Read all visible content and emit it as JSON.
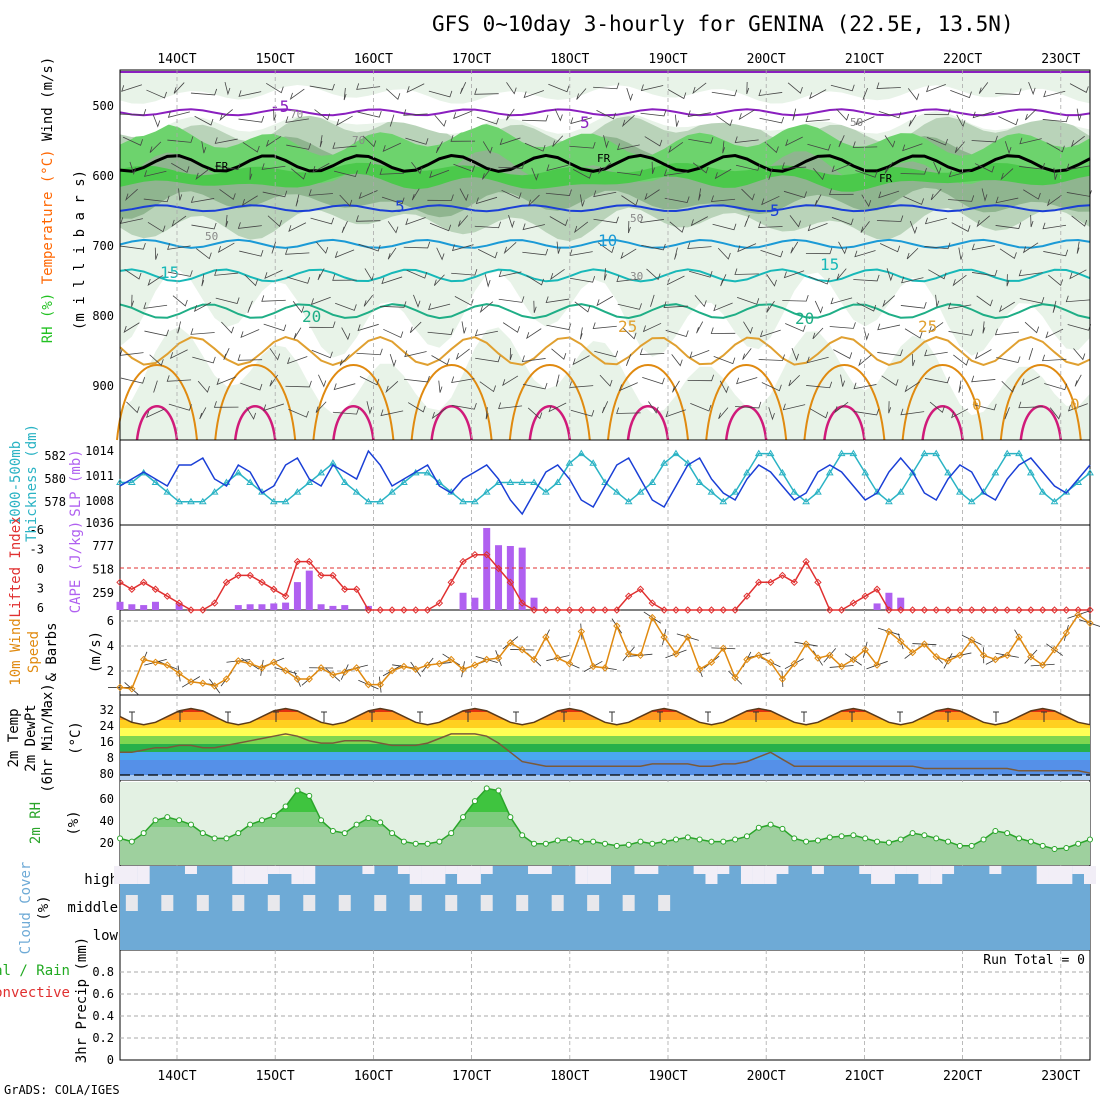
{
  "title": "GFS 0~10day 3-hourly for GENINA (22.5E, 13.5N)",
  "credit": "GrADS: COLA/IGES",
  "x_ticks": [
    "14OCT",
    "15OCT",
    "16OCT",
    "17OCT",
    "18OCT",
    "19OCT",
    "20OCT",
    "21OCT",
    "22OCT",
    "23OCT"
  ],
  "colors": {
    "rh": "#22c122",
    "temp": "#ff6600",
    "wind": "#333333",
    "slp": "#1a3fd6",
    "thick": "#2ab3c4",
    "cape": "#b060f0",
    "li": "#e03030",
    "wind10": "#e08a10",
    "rh2m": "#2aa52a",
    "cloud": "#6eaad6",
    "precip": "#22aa22"
  },
  "panels": {
    "upper": {
      "ylabels": [
        {
          "text": "RH (%)",
          "color": "#22c122"
        },
        {
          "text": "Temperature (°C)",
          "color": "#ff6600"
        },
        {
          "text": "Wind (m/s)",
          "color": "#000"
        }
      ],
      "ylabel2": "(m i l l i b a r s)",
      "y_ticks": [
        "500",
        "600",
        "700",
        "800",
        "900"
      ],
      "contour_labels": [
        "5",
        "-5",
        "5",
        "5",
        "10",
        "15",
        "15",
        "20",
        "20",
        "25",
        "25",
        "0",
        "0",
        "FR",
        "FR",
        "FR",
        "50",
        "50",
        "50",
        "70",
        "70",
        "30"
      ]
    },
    "p2": {
      "ylabels": [
        {
          "text": "1000-500mb",
          "color": "#2ab3c4"
        },
        {
          "text": "Thickness (dm)",
          "color": "#2ab3c4"
        }
      ],
      "ylabel_r": "SLP (mb)",
      "y_ticks_left": [
        "582",
        "580",
        "578"
      ],
      "y_ticks_right": [
        "1014",
        "1011",
        "1008",
        "1036"
      ]
    },
    "p3": {
      "ylabels": [
        {
          "text": "Lifted Index",
          "color": "#e03030"
        }
      ],
      "ylabel_r": "CAPE (J/kg)",
      "y_ticks_left": [
        "-6",
        "-3",
        "0",
        "3",
        "6"
      ],
      "y_ticks_right": [
        "777",
        "518",
        "259"
      ]
    },
    "p4": {
      "ylabels": [
        {
          "text": "10m Wind",
          "color": "#e08a10"
        },
        {
          "text": "Speed",
          "color": "#e08a10"
        },
        {
          "text": "& Barbs",
          "color": "#000"
        }
      ],
      "ylabel_r": "(m/s)",
      "y_ticks": [
        "6",
        "4",
        "2"
      ]
    },
    "p5": {
      "ylabels": [
        {
          "text": "2m Temp",
          "color": "#000"
        },
        {
          "text": "2m DewPt",
          "color": "#000"
        },
        {
          "text": "(6hr Min/Max)",
          "color": "#000"
        }
      ],
      "ylabel_r": "(°C)",
      "y_ticks": [
        "32",
        "24",
        "16",
        "8",
        "80"
      ]
    },
    "p6": {
      "ylabels": [
        {
          "text": "2m RH",
          "color": "#2aa52a"
        }
      ],
      "ylabel_r": "(%)",
      "y_ticks": [
        "60",
        "40",
        "20"
      ]
    },
    "p7": {
      "ylabels": [
        {
          "text": "Cloud Cover",
          "color": "#6eaad6"
        }
      ],
      "ylabel_r": "(%)",
      "level_labels": [
        "high",
        "middle",
        "low"
      ]
    },
    "p8": {
      "ylabels": [
        {
          "text": "Total / Rain",
          "color": "#22aa22"
        },
        {
          "text": "Convective",
          "color": "#e03030"
        }
      ],
      "ylabel_r": "3hr Precip (mm)",
      "y_ticks": [
        "0.8",
        "0.6",
        "0.4",
        "0.2",
        "0"
      ],
      "run_total": "Run Total = 0"
    }
  },
  "chart_data": [
    {
      "type": "line",
      "name": "slp",
      "y_unit": "mb",
      "ylim": [
        1005,
        1016
      ],
      "values": [
        1010,
        1011,
        1012,
        1011,
        1010,
        1013,
        1013,
        1014,
        1011,
        1010,
        1013,
        1012,
        1009,
        1010,
        1013,
        1014,
        1011,
        1010,
        1013,
        1012,
        1011,
        1015,
        1013,
        1010,
        1011,
        1012,
        1013,
        1010,
        1009,
        1011,
        1012,
        1013,
        1011,
        1008,
        1006,
        1009,
        1012,
        1013,
        1011,
        1008,
        1007,
        1010,
        1013,
        1014,
        1011,
        1008,
        1007,
        1010,
        1013,
        1014,
        1011,
        1009,
        1008,
        1011,
        1013,
        1012,
        1010,
        1008,
        1009,
        1012,
        1013,
        1012,
        1010,
        1008,
        1009,
        1012,
        1014,
        1012,
        1009,
        1008,
        1011,
        1013,
        1012,
        1009,
        1008,
        1011,
        1013,
        1014,
        1012,
        1010,
        1009,
        1011,
        1013
      ]
    },
    {
      "type": "line",
      "name": "thickness",
      "y_unit": "dm",
      "ylim": [
        576,
        584
      ],
      "values": [
        580,
        580,
        581,
        580,
        579,
        578,
        578,
        578,
        579,
        580,
        581,
        580,
        579,
        578,
        578,
        579,
        580,
        581,
        582,
        580,
        579,
        578,
        578,
        579,
        580,
        581,
        581,
        580,
        579,
        578,
        578,
        579,
        580,
        580,
        580,
        580,
        579,
        580,
        582,
        583,
        582,
        580,
        579,
        578,
        579,
        580,
        582,
        583,
        582,
        580,
        579,
        578,
        579,
        581,
        583,
        583,
        581,
        579,
        578,
        579,
        581,
        583,
        583,
        581,
        579,
        578,
        579,
        581,
        583,
        583,
        581,
        579,
        578,
        579,
        581,
        583,
        583,
        581,
        579,
        578,
        579,
        580,
        581
      ]
    },
    {
      "type": "line",
      "name": "lifted_index",
      "ylim": [
        6,
        -6
      ],
      "values": [
        2,
        3,
        2,
        3,
        4,
        5,
        6,
        6,
        5,
        2,
        1,
        1,
        2,
        3,
        4,
        -1,
        -1,
        1,
        1,
        3,
        3,
        6,
        6,
        6,
        6,
        6,
        6,
        5,
        2,
        -1,
        -2,
        -2,
        0,
        2,
        5,
        6,
        6,
        6,
        6,
        6,
        6,
        6,
        6,
        4,
        3,
        5,
        6,
        6,
        6,
        6,
        6,
        6,
        6,
        4,
        2,
        2,
        1,
        2,
        -1,
        2,
        6,
        6,
        5,
        4,
        3,
        6,
        6,
        6,
        6,
        6,
        6,
        6,
        6,
        6,
        6,
        6,
        6,
        6,
        6,
        6,
        6,
        6,
        6
      ]
    },
    {
      "type": "bar",
      "name": "cape",
      "y_unit": "J/kg",
      "ylim": [
        0,
        1036
      ],
      "values": [
        100,
        70,
        60,
        100,
        0,
        80,
        0,
        0,
        0,
        0,
        60,
        70,
        70,
        80,
        90,
        340,
        480,
        70,
        50,
        60,
        0,
        50,
        0,
        0,
        0,
        0,
        0,
        0,
        0,
        210,
        150,
        1000,
        790,
        780,
        760,
        150,
        0,
        0,
        0,
        0,
        0,
        0,
        0,
        0,
        0,
        0,
        0,
        0,
        0,
        0,
        0,
        0,
        0,
        0,
        0,
        0,
        0,
        0,
        0,
        0,
        0,
        0,
        0,
        0,
        80,
        210,
        150,
        0,
        0,
        0,
        0,
        0,
        0,
        0,
        0,
        0,
        0,
        0,
        0,
        0,
        0,
        0,
        0
      ]
    },
    {
      "type": "line",
      "name": "wind10m",
      "y_unit": "m/s",
      "ylim": [
        0.8,
        6.6
      ],
      "values": [
        1.2,
        1.1,
        3.2,
        3,
        2.8,
        2.2,
        1.6,
        1.5,
        1.3,
        1.8,
        3.1,
        2.9,
        2.6,
        3,
        2.4,
        1.8,
        1.8,
        2.6,
        2.1,
        2.3,
        2.6,
        1.4,
        1.4,
        2.4,
        2.7,
        2.5,
        2.8,
        2.9,
        3.2,
        2.5,
        2.8,
        3.2,
        3.3,
        4.4,
        3.9,
        3.2,
        4.8,
        3.3,
        2.9,
        5.2,
        2.7,
        2.6,
        5.6,
        3.6,
        3.5,
        6.2,
        4.8,
        3.6,
        4.8,
        2.5,
        3,
        4,
        1.9,
        3.2,
        3.5,
        3,
        1.8,
        2.9,
        4.3,
        3.3,
        3.5,
        2.7,
        3.2,
        3.9,
        2.8,
        5.2,
        4.5,
        3.7,
        4.3,
        3.4,
        3.1,
        3.5,
        4.6,
        3.5,
        3.2,
        3.5,
        4.8,
        3.4,
        2.8,
        3.9,
        5.1,
        6.4,
        5.8
      ]
    },
    {
      "type": "line",
      "name": "rh2m",
      "y_unit": "%",
      "ylim": [
        0,
        78
      ],
      "values": [
        25,
        22,
        30,
        42,
        45,
        42,
        38,
        30,
        25,
        25,
        30,
        38,
        42,
        46,
        55,
        70,
        65,
        42,
        32,
        30,
        38,
        44,
        40,
        30,
        22,
        20,
        20,
        22,
        30,
        45,
        60,
        72,
        70,
        45,
        28,
        20,
        20,
        23,
        24,
        22,
        22,
        20,
        18,
        19,
        22,
        20,
        22,
        24,
        26,
        24,
        22,
        22,
        24,
        27,
        35,
        38,
        34,
        25,
        22,
        23,
        26,
        27,
        28,
        25,
        22,
        21,
        24,
        30,
        28,
        25,
        22,
        18,
        18,
        24,
        32,
        30,
        25,
        22,
        18,
        15,
        16,
        20,
        24
      ]
    },
    {
      "type": "line",
      "name": "temp2m",
      "y_unit": "°C",
      "ylim": [
        0,
        36
      ],
      "period": 8,
      "min": 24,
      "max": 31
    },
    {
      "type": "line",
      "name": "dewpt2m",
      "y_unit": "°C",
      "ylim": [
        0,
        36
      ],
      "values": [
        12,
        12,
        13,
        14,
        14,
        15,
        15,
        14,
        14,
        15,
        16,
        17,
        18,
        19,
        20,
        19,
        17,
        16,
        16,
        17,
        17,
        17,
        16,
        15,
        15,
        15,
        16,
        18,
        20,
        20,
        20,
        19,
        16,
        12,
        8,
        7,
        6,
        6,
        6,
        6,
        6,
        6,
        6,
        6,
        6,
        7,
        7,
        7,
        7,
        6,
        6,
        7,
        7,
        8,
        10,
        12,
        9,
        6,
        6,
        6,
        6,
        6,
        6,
        6,
        6,
        6,
        6,
        6,
        5,
        5,
        5,
        5,
        5,
        5,
        5,
        5,
        4,
        4,
        4,
        4,
        4,
        4,
        3
      ]
    },
    {
      "type": "area",
      "name": "cloud_cover",
      "levels": [
        "high",
        "middle",
        "low"
      ]
    },
    {
      "type": "bar",
      "name": "precip_3hr",
      "y_unit": "mm",
      "ylim": [
        0,
        1
      ],
      "values": []
    }
  ]
}
